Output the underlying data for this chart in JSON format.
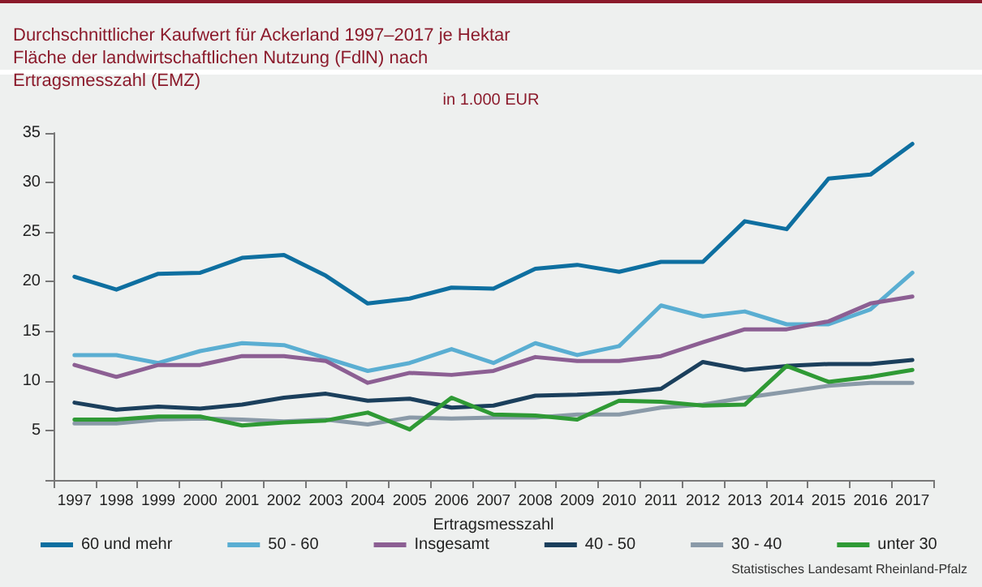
{
  "chart_data": {
    "type": "line",
    "title": "Durchschnittlicher Kaufwert für Ackerland 1997–2017 je Hektar Fläche der landwirtschaftlichen Nutzung (FdlN) nach Ertragsmesszahl (EMZ)",
    "subtitle": "in 1.000 EUR",
    "xlabel": "Ertragsmesszahl",
    "annotations": [
      "Statistisches Landesamt Rheinland-Pfalz"
    ],
    "categories": [
      "1997",
      "1998",
      "1999",
      "2000",
      "2001",
      "2002",
      "2003",
      "2004",
      "2005",
      "2006",
      "2007",
      "2008",
      "2009",
      "2010",
      "2011",
      "2012",
      "2013",
      "2014",
      "2015",
      "2016",
      "2017"
    ],
    "series": [
      {
        "name": "60 und mehr",
        "color": "#0e6fa0",
        "values": [
          20.5,
          19.2,
          20.8,
          20.9,
          22.4,
          22.7,
          20.6,
          17.8,
          18.3,
          19.4,
          19.3,
          21.3,
          21.7,
          21.0,
          22.0,
          22.0,
          26.1,
          25.3,
          30.4,
          30.8,
          33.9
        ]
      },
      {
        "name": "50 - 60",
        "color": "#5aaed2",
        "values": [
          12.6,
          12.6,
          11.8,
          13.0,
          13.8,
          13.6,
          12.3,
          11.0,
          11.8,
          13.2,
          11.8,
          13.8,
          12.6,
          13.5,
          17.6,
          16.5,
          17.0,
          15.7,
          15.7,
          17.2,
          20.9
        ]
      },
      {
        "name": "Insgesamt",
        "color": "#8c5f93",
        "values": [
          11.6,
          10.4,
          11.6,
          11.6,
          12.5,
          12.5,
          12.0,
          9.8,
          10.8,
          10.6,
          11.0,
          12.4,
          12.0,
          12.0,
          12.5,
          13.9,
          15.2,
          15.2,
          16.0,
          17.8,
          18.5
        ]
      },
      {
        "name": "40 - 50",
        "color": "#1b3f5c",
        "values": [
          7.8,
          7.1,
          7.4,
          7.2,
          7.6,
          8.3,
          8.7,
          8.0,
          8.2,
          7.3,
          7.5,
          8.5,
          8.6,
          8.8,
          9.2,
          11.9,
          11.1,
          11.5,
          11.7,
          11.7,
          12.1
        ]
      },
      {
        "name": "30 - 40",
        "color": "#8a9aa8",
        "values": [
          5.7,
          5.7,
          6.1,
          6.2,
          6.1,
          5.9,
          6.1,
          5.6,
          6.3,
          6.2,
          6.3,
          6.3,
          6.6,
          6.6,
          7.3,
          7.6,
          8.3,
          8.9,
          9.5,
          9.8,
          9.8
        ]
      },
      {
        "name": "unter 30",
        "color": "#2f9a35",
        "values": [
          6.1,
          6.1,
          6.4,
          6.4,
          5.5,
          5.8,
          6.0,
          6.8,
          5.1,
          8.3,
          6.6,
          6.5,
          6.1,
          8.0,
          7.9,
          7.5,
          7.6,
          11.5,
          9.9,
          10.4,
          11.1
        ]
      }
    ],
    "ylim": [
      0,
      35
    ],
    "yticks": [
      {
        "value": 0,
        "label": null
      },
      5,
      10,
      15,
      20,
      25,
      30,
      35
    ],
    "grid": false,
    "legend": "bottom",
    "marker": "none",
    "line_style": "solid"
  }
}
